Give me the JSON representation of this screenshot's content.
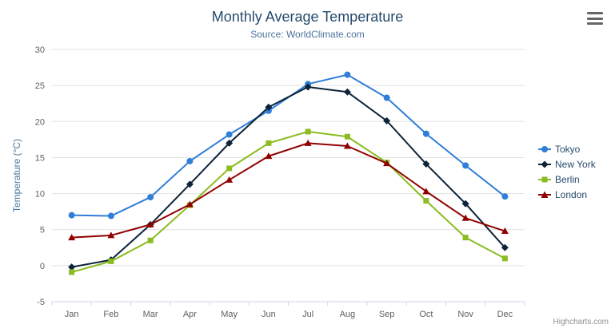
{
  "chart_data": {
    "type": "line",
    "title": "Monthly Average Temperature",
    "subtitle": "Source: WorldClimate.com",
    "categories": [
      "Jan",
      "Feb",
      "Mar",
      "Apr",
      "May",
      "Jun",
      "Jul",
      "Aug",
      "Sep",
      "Oct",
      "Nov",
      "Dec"
    ],
    "xlabel": "",
    "ylabel": "Temperature (°C)",
    "ylim": [
      -5,
      30
    ],
    "ytick_interval": 5,
    "grid": true,
    "legend_position": "right",
    "series": [
      {
        "name": "Tokyo",
        "color": "#2f7ed8",
        "marker": "circle",
        "values": [
          7.0,
          6.9,
          9.5,
          14.5,
          18.2,
          21.5,
          25.2,
          26.5,
          23.3,
          18.3,
          13.9,
          9.6
        ]
      },
      {
        "name": "New York",
        "color": "#0d233a",
        "marker": "diamond",
        "values": [
          -0.2,
          0.8,
          5.7,
          11.3,
          17.0,
          22.0,
          24.8,
          24.1,
          20.1,
          14.1,
          8.6,
          2.5
        ]
      },
      {
        "name": "Berlin",
        "color": "#8bbc21",
        "marker": "square",
        "values": [
          -0.9,
          0.6,
          3.5,
          8.4,
          13.5,
          17.0,
          18.6,
          17.9,
          14.3,
          9.0,
          3.9,
          1.0
        ]
      },
      {
        "name": "London",
        "color": "#910000",
        "marker": "triangle",
        "values": [
          3.9,
          4.2,
          5.7,
          8.5,
          11.9,
          15.2,
          17.0,
          16.6,
          14.2,
          10.3,
          6.6,
          4.8
        ]
      }
    ],
    "credits": "Highcharts.com",
    "colors": {
      "gridline": "#e0e0e0",
      "axis_line": "#ccd6eb",
      "axis_label": "#606060",
      "title": "#274b6d",
      "subtitle": "#4d759e"
    }
  },
  "toolbar": {
    "export_menu_icon": "hamburger-icon"
  }
}
